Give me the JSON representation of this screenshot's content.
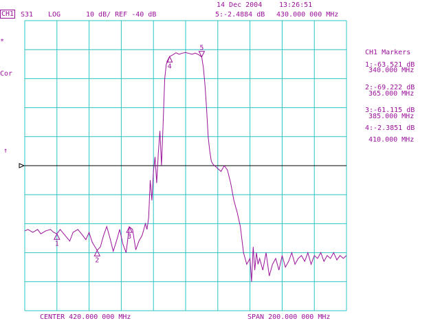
{
  "header": {
    "date": "14 Dec 2004",
    "time": "13:26:51",
    "channel": "CH1",
    "parameter": "S31",
    "format": "LOG",
    "scale_ref": "10 dB/ REF -40 dB",
    "active_marker": "5:-2.4884 dB",
    "active_marker_freq": "430.000 000 MHz"
  },
  "left_annotations": {
    "star": "*",
    "cor": "Cor",
    "ref_arrow": "↑"
  },
  "markers_panel": {
    "title": "CH1 Markers",
    "items": [
      {
        "value": "1:-63.521 dB",
        "freq": "340.000 MHz"
      },
      {
        "value": "2:-69.222 dB",
        "freq": "365.000 MHz"
      },
      {
        "value": "3:-61.115 dB",
        "freq": "385.000 MHz"
      },
      {
        "value": "4:-2.3851 dB",
        "freq": "410.000 MHz"
      }
    ]
  },
  "footer": {
    "center": "CENTER 420.000 000 MHz",
    "span": "SPAN 200.000 000 MHz"
  },
  "trace_markers": [
    {
      "label": "1",
      "freq_mhz": 340,
      "db": -63.521
    },
    {
      "label": "2",
      "freq_mhz": 365,
      "db": -69.222
    },
    {
      "label": "3",
      "freq_mhz": 385,
      "db": -61.115
    },
    {
      "label": "4",
      "freq_mhz": 410,
      "db": -2.3851
    },
    {
      "label": "5",
      "freq_mhz": 430,
      "db": -2.4884
    }
  ],
  "chart_data": {
    "type": "line",
    "center_mhz": 420,
    "span_mhz": 200,
    "scale_db_per_div": 10,
    "ref_db": -40,
    "xlim": [
      320,
      520
    ],
    "ylim": [
      -90,
      10
    ],
    "grid": true,
    "series": [
      {
        "color": "#9a109a",
        "x": [
          320,
          322,
          325,
          328,
          330,
          333,
          336,
          338,
          340,
          342,
          345,
          348,
          350,
          353,
          356,
          358,
          360,
          362,
          365,
          367,
          369,
          371,
          373,
          375,
          377,
          379,
          381,
          383,
          385,
          387,
          389,
          391,
          393,
          395,
          396,
          397,
          398,
          399,
          400,
          401,
          402,
          403,
          404,
          405,
          406,
          407,
          408,
          409,
          410,
          412,
          414,
          416,
          418,
          420,
          422,
          424,
          426,
          428,
          430,
          431,
          432,
          433,
          434,
          435,
          436,
          437,
          438,
          439,
          440,
          442,
          444,
          446,
          448,
          450,
          452,
          454,
          456,
          458,
          460,
          461,
          462,
          463,
          464,
          465,
          466,
          468,
          470,
          472,
          474,
          476,
          478,
          480,
          482,
          484,
          486,
          488,
          490,
          492,
          494,
          496,
          498,
          500,
          502,
          504,
          506,
          508,
          510,
          512,
          514,
          516,
          518,
          520
        ],
        "y": [
          -62.5,
          -62.0,
          -63.0,
          -62.0,
          -63.5,
          -62.5,
          -62.0,
          -63.0,
          -63.5,
          -62.0,
          -64.0,
          -66.0,
          -63.0,
          -62.0,
          -64.0,
          -65.5,
          -63.0,
          -66.5,
          -69.2,
          -68.0,
          -64.0,
          -61.0,
          -65.0,
          -69.5,
          -66.0,
          -62.0,
          -67.0,
          -70.0,
          -61.1,
          -62.0,
          -69.0,
          -66.0,
          -64.0,
          -60.0,
          -62.0,
          -58.0,
          -45.0,
          -52.0,
          -42.0,
          -37.0,
          -46.0,
          -36.0,
          -28.0,
          -40.0,
          -26.0,
          -10.0,
          -5.0,
          -4.0,
          -2.4,
          -1.8,
          -1.1,
          -1.6,
          -1.2,
          -1.0,
          -1.3,
          -1.6,
          -1.2,
          -1.7,
          -2.5,
          -6.0,
          -12.0,
          -20.0,
          -30.0,
          -35.0,
          -38.5,
          -39.5,
          -40.0,
          -40.5,
          -41.0,
          -42.0,
          -40.0,
          -41.5,
          -46.0,
          -52.0,
          -56.0,
          -61.0,
          -70.0,
          -74.0,
          -72.0,
          -80.0,
          -68.0,
          -76.0,
          -70.0,
          -74.0,
          -72.0,
          -76.0,
          -70.0,
          -78.0,
          -74.0,
          -72.0,
          -76.0,
          -71.0,
          -75.0,
          -73.0,
          -70.0,
          -74.0,
          -72.0,
          -71.0,
          -73.0,
          -70.0,
          -74.0,
          -71.0,
          -72.0,
          -70.0,
          -73.0,
          -71.0,
          -72.0,
          -70.0,
          -72.5,
          -71.0,
          -72.0,
          -71.0
        ]
      }
    ]
  }
}
